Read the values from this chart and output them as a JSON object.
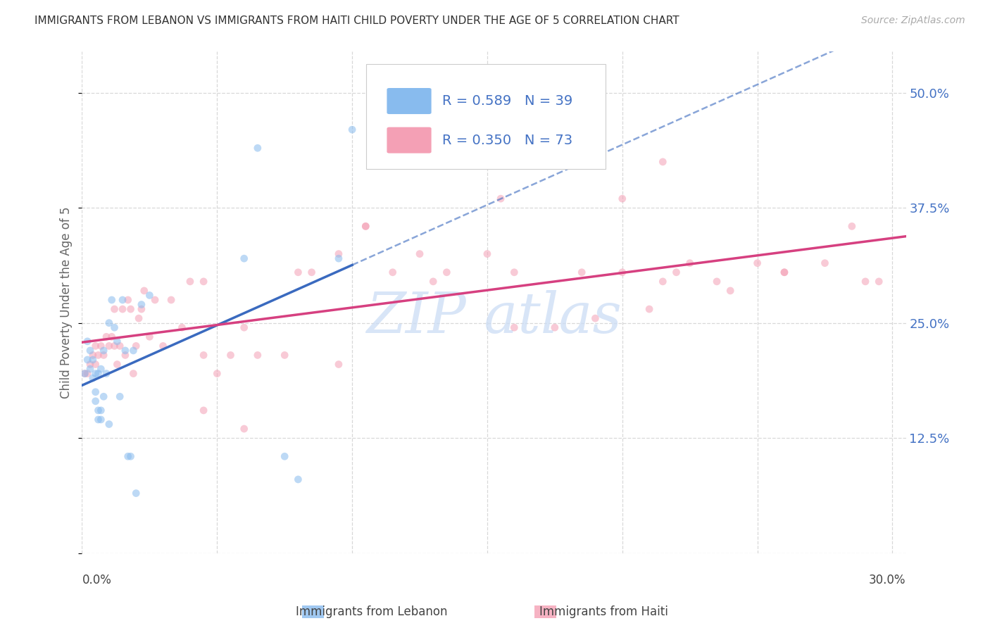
{
  "title": "IMMIGRANTS FROM LEBANON VS IMMIGRANTS FROM HAITI CHILD POVERTY UNDER THE AGE OF 5 CORRELATION CHART",
  "source": "Source: ZipAtlas.com",
  "ylabel": "Child Poverty Under the Age of 5",
  "xlim": [
    0.0,
    0.305
  ],
  "ylim": [
    0.0,
    0.545
  ],
  "ytick_values": [
    0.0,
    0.125,
    0.25,
    0.375,
    0.5
  ],
  "ytick_labels": [
    "",
    "12.5%",
    "25.0%",
    "37.5%",
    "50.0%"
  ],
  "xtick_label_left": "0.0%",
  "xtick_label_right": "30.0%",
  "legend_label1": "R = 0.589   N = 39",
  "legend_label2": "R = 0.350   N = 73",
  "legend_xlabel1": "Immigrants from Lebanon",
  "legend_xlabel2": "Immigrants from Haiti",
  "color_lebanon": "#88bbee",
  "color_haiti": "#f4a0b5",
  "background_color": "#ffffff",
  "grid_color": "#d8d8d8",
  "title_color": "#333333",
  "axis_label_color": "#666666",
  "tick_color_right": "#4472c4",
  "scatter_alpha": 0.55,
  "scatter_size": 60,
  "line_lebanon_color": "#3a6abf",
  "line_haiti_color": "#d64080",
  "watermark_color": "#ccddf5",
  "lebanon_x": [
    0.001,
    0.002,
    0.002,
    0.003,
    0.003,
    0.004,
    0.004,
    0.005,
    0.005,
    0.005,
    0.006,
    0.006,
    0.006,
    0.007,
    0.007,
    0.007,
    0.008,
    0.008,
    0.009,
    0.01,
    0.01,
    0.011,
    0.012,
    0.013,
    0.014,
    0.015,
    0.016,
    0.017,
    0.018,
    0.019,
    0.02,
    0.022,
    0.025,
    0.06,
    0.065,
    0.075,
    0.08,
    0.095,
    0.1
  ],
  "lebanon_y": [
    0.195,
    0.21,
    0.23,
    0.2,
    0.22,
    0.19,
    0.21,
    0.165,
    0.175,
    0.195,
    0.145,
    0.155,
    0.195,
    0.145,
    0.155,
    0.2,
    0.17,
    0.22,
    0.195,
    0.14,
    0.25,
    0.275,
    0.245,
    0.23,
    0.17,
    0.275,
    0.22,
    0.105,
    0.105,
    0.22,
    0.065,
    0.27,
    0.28,
    0.32,
    0.44,
    0.105,
    0.08,
    0.32,
    0.46
  ],
  "haiti_x": [
    0.001,
    0.002,
    0.003,
    0.004,
    0.005,
    0.005,
    0.006,
    0.007,
    0.008,
    0.009,
    0.01,
    0.011,
    0.012,
    0.012,
    0.013,
    0.014,
    0.015,
    0.016,
    0.017,
    0.018,
    0.019,
    0.02,
    0.021,
    0.022,
    0.023,
    0.025,
    0.027,
    0.03,
    0.033,
    0.037,
    0.04,
    0.045,
    0.05,
    0.055,
    0.06,
    0.065,
    0.075,
    0.085,
    0.095,
    0.105,
    0.115,
    0.125,
    0.135,
    0.15,
    0.16,
    0.175,
    0.185,
    0.2,
    0.21,
    0.225,
    0.235,
    0.25,
    0.26,
    0.275,
    0.285,
    0.295,
    0.215,
    0.24,
    0.26,
    0.29,
    0.22,
    0.2,
    0.13,
    0.08,
    0.06,
    0.045,
    0.19,
    0.095,
    0.16,
    0.045,
    0.105,
    0.155,
    0.215
  ],
  "haiti_y": [
    0.195,
    0.195,
    0.205,
    0.215,
    0.205,
    0.225,
    0.215,
    0.225,
    0.215,
    0.235,
    0.225,
    0.235,
    0.225,
    0.265,
    0.205,
    0.225,
    0.265,
    0.215,
    0.275,
    0.265,
    0.195,
    0.225,
    0.255,
    0.265,
    0.285,
    0.235,
    0.275,
    0.225,
    0.275,
    0.245,
    0.295,
    0.295,
    0.195,
    0.215,
    0.245,
    0.215,
    0.215,
    0.305,
    0.325,
    0.355,
    0.305,
    0.325,
    0.305,
    0.325,
    0.245,
    0.245,
    0.305,
    0.305,
    0.265,
    0.315,
    0.295,
    0.315,
    0.305,
    0.315,
    0.355,
    0.295,
    0.295,
    0.285,
    0.305,
    0.295,
    0.305,
    0.385,
    0.295,
    0.305,
    0.135,
    0.155,
    0.255,
    0.205,
    0.305,
    0.215,
    0.355,
    0.385,
    0.425
  ]
}
